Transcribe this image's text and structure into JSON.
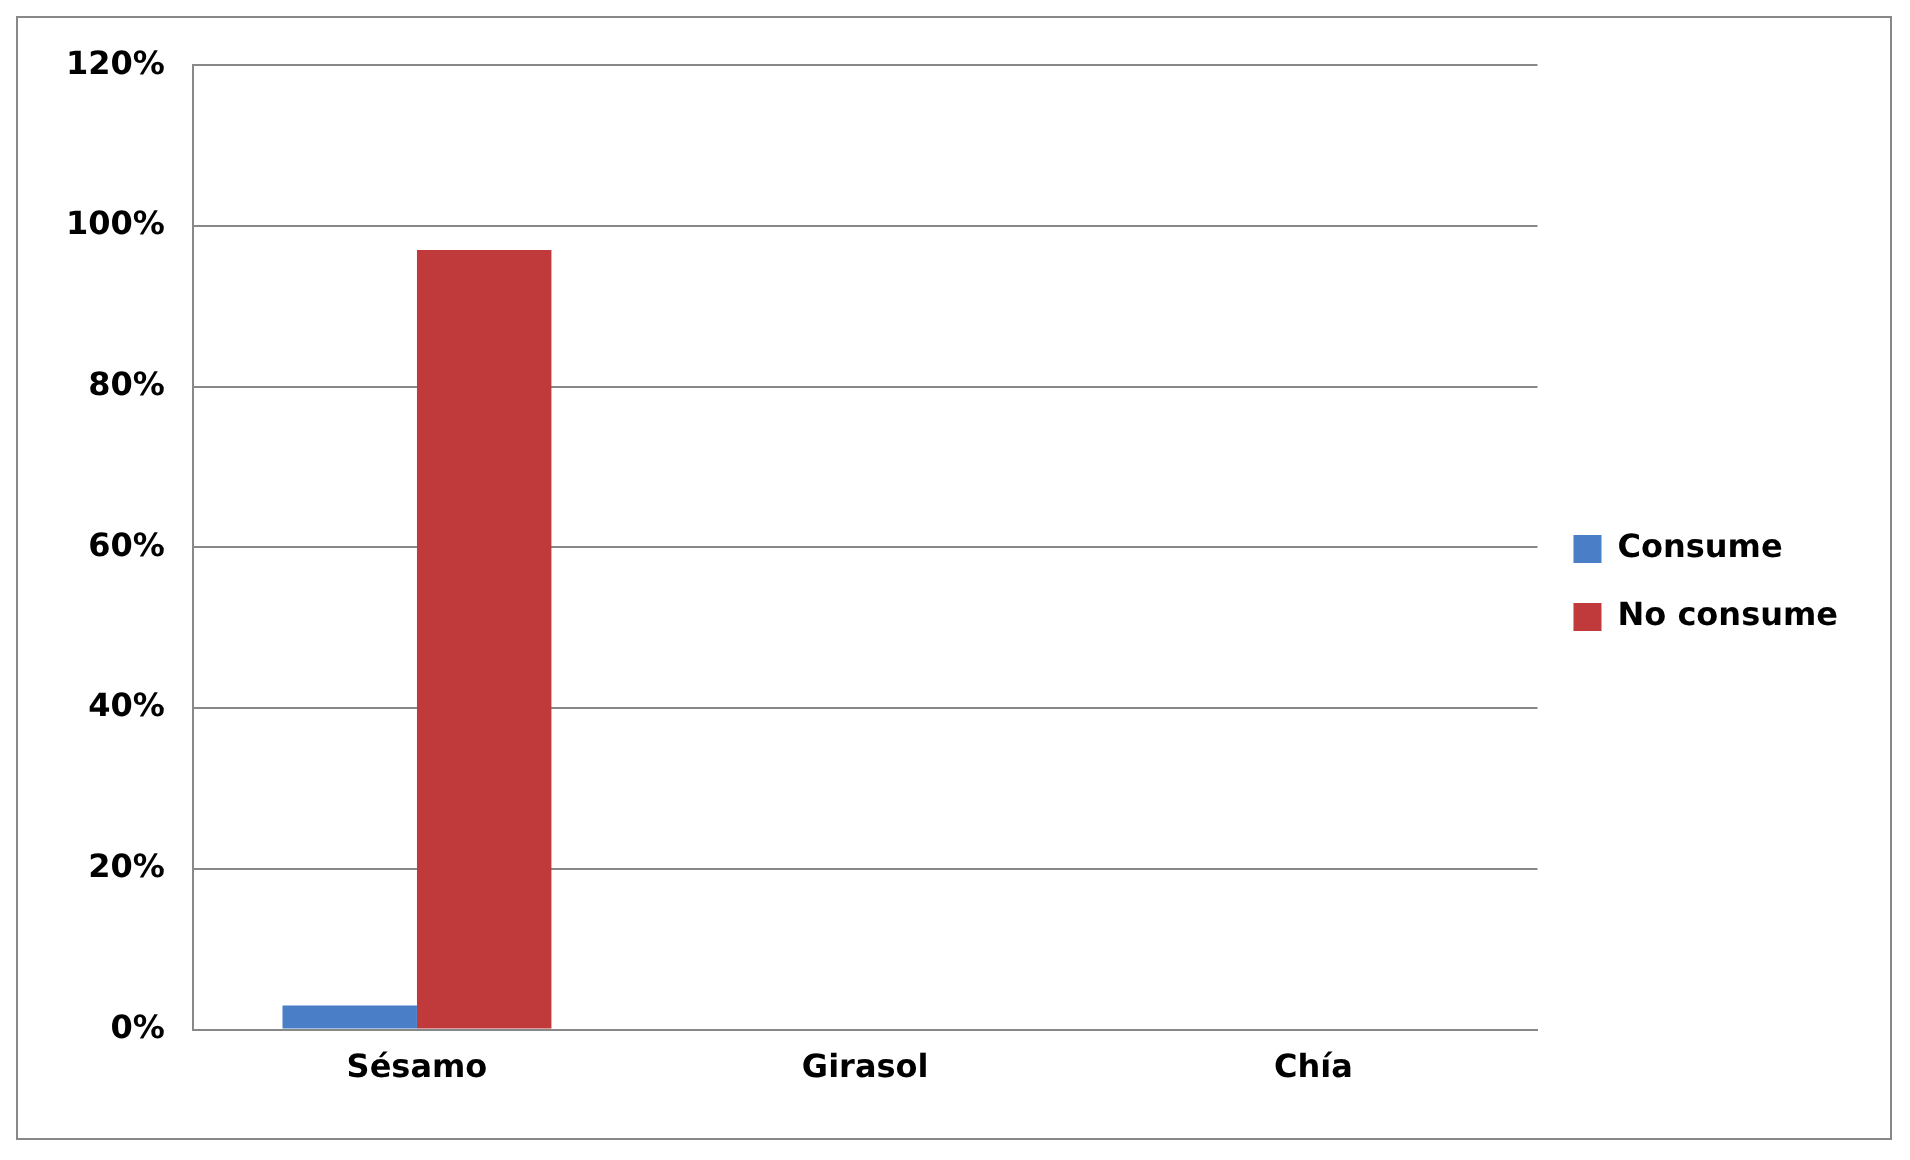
{
  "chart_data": {
    "type": "bar",
    "categories": [
      "Sésamo",
      "Girasol",
      "Chía"
    ],
    "series": [
      {
        "name": "Consume",
        "color": "#4a7fc8",
        "values": [
          3,
          0,
          0
        ]
      },
      {
        "name": "No consume",
        "color": "#c0393b",
        "values": [
          97,
          0,
          0
        ]
      }
    ],
    "ylim": [
      0,
      120
    ],
    "yticks": [
      {
        "value": 0,
        "label": "0%"
      },
      {
        "value": 20,
        "label": "20%"
      },
      {
        "value": 40,
        "label": "40%"
      },
      {
        "value": 60,
        "label": "60%"
      },
      {
        "value": 80,
        "label": "80%"
      },
      {
        "value": 100,
        "label": "100%"
      },
      {
        "value": 120,
        "label": "120%"
      }
    ],
    "grid": "y",
    "legend": "right"
  }
}
